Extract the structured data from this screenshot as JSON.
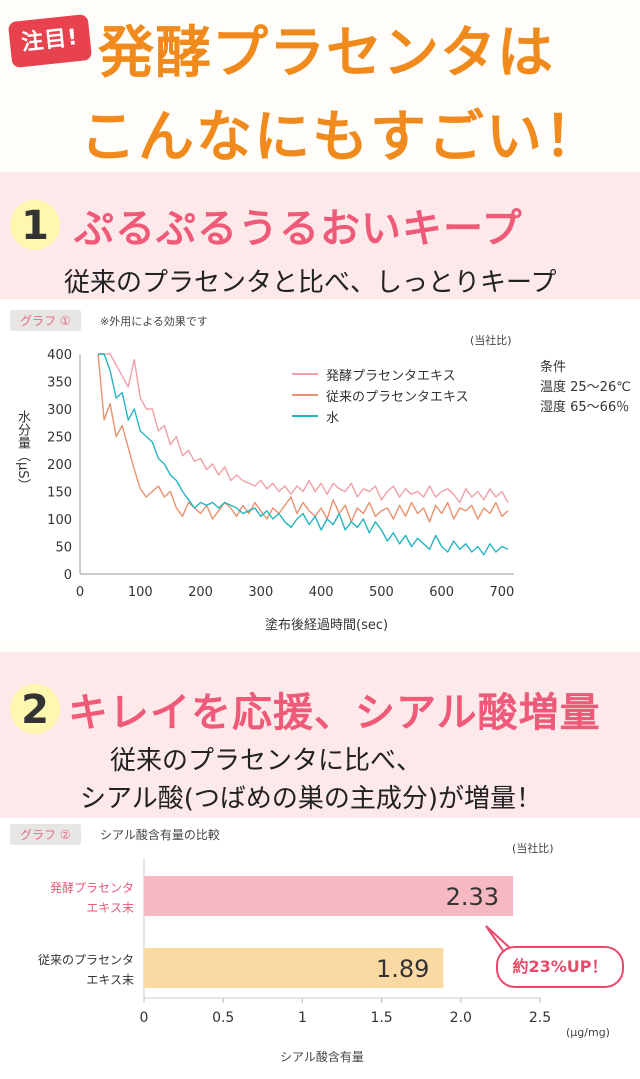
{
  "header": {
    "badge": "注目!",
    "title_line1": "発酵プラセンタは",
    "title_line2": "こんなにもすごい！"
  },
  "section1": {
    "number": "1",
    "title": "ぷるぷるうるおいキープ",
    "subtitle": "従来のプラセンタと比べ、しっとりキープ"
  },
  "section2": {
    "number": "2",
    "title": "キレイを応援、シアル酸増量",
    "subtitle_line1": "従来のプラセンタに比べ、",
    "subtitle_line2": "シアル酸(つばめの巣の主成分)が増量！"
  },
  "colors": {
    "fermented": "#f0a0a8",
    "conventional": "#e8926e",
    "water": "#25b5c0",
    "bar_fermented": "#f7b9c1",
    "bar_conventional": "#fbd9a3",
    "accent_pink": "#ee5a78",
    "title_orange": "#f08a1c"
  },
  "chart_data": [
    {
      "type": "line",
      "tag": "グラフ ①",
      "note": "※外用による効果です",
      "source_note": "(当社比)",
      "ylabel": "水分量（μS）",
      "xlabel": "塗布後経過時間(sec)",
      "xlim": [
        0,
        720
      ],
      "ylim": [
        0,
        400
      ],
      "xticks": [
        "0",
        "100",
        "200",
        "300",
        "400",
        "500",
        "600",
        "700"
      ],
      "yticks": [
        "0",
        "50",
        "100",
        "150",
        "200",
        "250",
        "300",
        "350",
        "400"
      ],
      "conditions": [
        "条件",
        "温度 25～26℃",
        "湿度 65～66％"
      ],
      "grid": false,
      "legend_position": "top-right",
      "series": [
        {
          "name": "発酵プラセンタエキス",
          "color_key": "fermented",
          "x": [
            30,
            40,
            50,
            60,
            70,
            80,
            90,
            100,
            110,
            120,
            130,
            140,
            150,
            160,
            170,
            180,
            190,
            200,
            210,
            220,
            230,
            240,
            250,
            260,
            270,
            280,
            290,
            300,
            310,
            320,
            330,
            340,
            350,
            360,
            370,
            380,
            390,
            400,
            410,
            420,
            430,
            440,
            450,
            460,
            470,
            480,
            490,
            500,
            510,
            520,
            530,
            540,
            550,
            560,
            570,
            580,
            590,
            600,
            610,
            620,
            630,
            640,
            650,
            660,
            670,
            680,
            690,
            700,
            710
          ],
          "y": [
            400,
            400,
            400,
            380,
            360,
            340,
            390,
            320,
            300,
            300,
            260,
            270,
            235,
            250,
            215,
            225,
            205,
            210,
            190,
            200,
            180,
            195,
            170,
            180,
            170,
            165,
            160,
            170,
            155,
            165,
            150,
            160,
            145,
            160,
            150,
            170,
            150,
            165,
            145,
            165,
            155,
            150,
            165,
            140,
            155,
            150,
            160,
            135,
            150,
            160,
            140,
            155,
            145,
            150,
            140,
            160,
            140,
            150,
            155,
            145,
            130,
            155,
            140,
            150,
            135,
            155,
            140,
            150,
            130
          ]
        },
        {
          "name": "従来のプラセンタエキス",
          "color_key": "conventional",
          "x": [
            30,
            40,
            50,
            60,
            70,
            80,
            90,
            100,
            110,
            120,
            130,
            140,
            150,
            160,
            170,
            180,
            190,
            200,
            210,
            220,
            230,
            240,
            250,
            260,
            270,
            280,
            290,
            300,
            310,
            320,
            330,
            340,
            350,
            360,
            370,
            380,
            390,
            400,
            410,
            420,
            430,
            440,
            450,
            460,
            470,
            480,
            490,
            500,
            510,
            520,
            530,
            540,
            550,
            560,
            570,
            580,
            590,
            600,
            610,
            620,
            630,
            640,
            650,
            660,
            670,
            680,
            690,
            700,
            710
          ],
          "y": [
            400,
            280,
            310,
            250,
            270,
            230,
            190,
            155,
            140,
            150,
            160,
            140,
            150,
            120,
            105,
            130,
            120,
            110,
            125,
            100,
            115,
            130,
            120,
            105,
            125,
            110,
            130,
            115,
            100,
            120,
            110,
            125,
            140,
            110,
            130,
            115,
            105,
            120,
            100,
            135,
            110,
            125,
            95,
            120,
            110,
            130,
            105,
            115,
            120,
            100,
            125,
            105,
            130,
            110,
            120,
            95,
            125,
            110,
            130,
            100,
            120,
            115,
            125,
            100,
            120,
            110,
            130,
            105,
            115
          ]
        },
        {
          "name": "水",
          "color_key": "water",
          "x": [
            30,
            40,
            50,
            60,
            70,
            80,
            90,
            100,
            110,
            120,
            130,
            140,
            150,
            160,
            170,
            180,
            190,
            200,
            210,
            220,
            230,
            240,
            250,
            260,
            270,
            280,
            290,
            300,
            310,
            320,
            330,
            340,
            350,
            360,
            370,
            380,
            390,
            400,
            410,
            420,
            430,
            440,
            450,
            460,
            470,
            480,
            490,
            500,
            510,
            520,
            530,
            540,
            550,
            560,
            570,
            580,
            590,
            600,
            610,
            620,
            630,
            640,
            650,
            660,
            670,
            680,
            690,
            700,
            710
          ],
          "y": [
            400,
            400,
            370,
            320,
            330,
            280,
            300,
            260,
            250,
            240,
            210,
            200,
            180,
            170,
            150,
            135,
            120,
            130,
            125,
            130,
            120,
            130,
            125,
            120,
            110,
            115,
            120,
            105,
            115,
            100,
            110,
            95,
            85,
            100,
            110,
            90,
            105,
            80,
            100,
            90,
            110,
            80,
            95,
            85,
            100,
            75,
            95,
            80,
            60,
            75,
            55,
            70,
            50,
            65,
            55,
            45,
            70,
            50,
            40,
            60,
            45,
            55,
            40,
            50,
            35,
            55,
            40,
            50,
            45
          ]
        }
      ]
    },
    {
      "type": "bar",
      "orientation": "horizontal",
      "tag": "グラフ ②",
      "note": "シアル酸含有量の比較",
      "source_note": "(当社比)",
      "xlabel": "シアル酸含有量",
      "unit": "(μg/mg)",
      "xlim": [
        0,
        2.5
      ],
      "xticks": [
        "0",
        "0.5",
        "1",
        "1.5",
        "2.0",
        "2.5"
      ],
      "categories": [
        {
          "line1": "発酵プラセンタ",
          "line2": "エキス末",
          "color_key": "bar_fermented",
          "label_color": "#e85a78"
        },
        {
          "line1": "従来のプラセンタ",
          "line2": "エキス末",
          "color_key": "bar_conventional",
          "label_color": "#333333"
        }
      ],
      "values": [
        2.33,
        1.89
      ],
      "value_labels": [
        "2.33",
        "1.89"
      ],
      "callout": "約23%UP！"
    }
  ]
}
